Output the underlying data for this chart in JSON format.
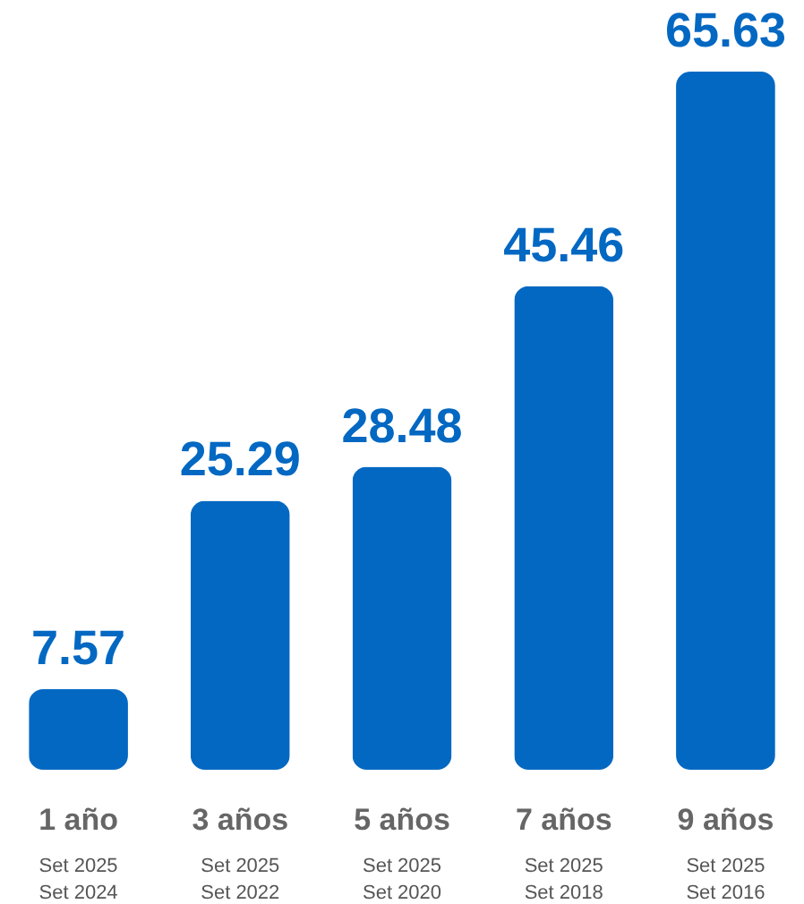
{
  "chart_data": {
    "type": "bar",
    "categories": [
      "1 año\nSet 2025\nSet 2024",
      "3 años\nSet 2025\nSet 2022",
      "5 años\nSet 2025\nSet 2020",
      "7 años\nSet 2025\nSet 2018",
      "9 años\nSet 2025\nSet 2016"
    ],
    "values": [
      7.57,
      25.29,
      28.48,
      45.46,
      65.63
    ],
    "color": "#0368c2",
    "data_labels": true
  }
}
